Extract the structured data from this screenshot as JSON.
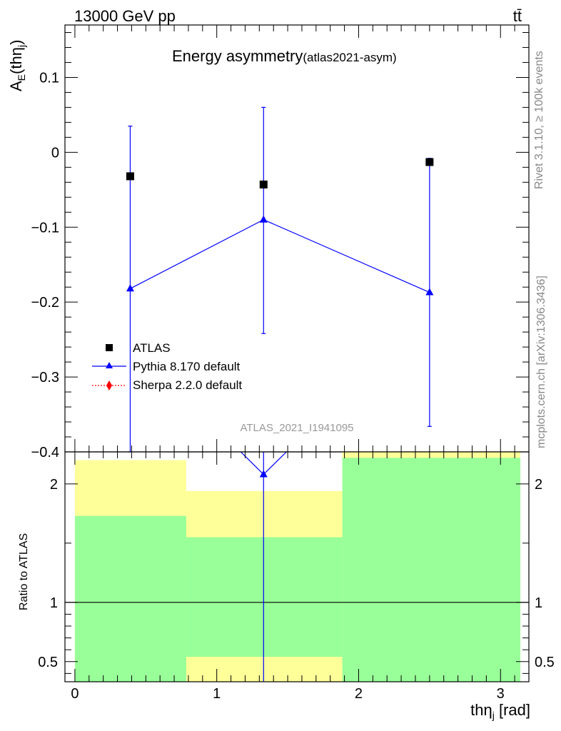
{
  "header": {
    "energy": "13000 GeV pp",
    "process": "tt̄"
  },
  "side_labels": {
    "rivet": "Rivet 3.1.10, ≥ 100k events",
    "mcplots": "mcplots.cern.ch [arXiv:1306.3436]"
  },
  "watermark": "ATLAS_2021_I1941095",
  "colors": {
    "atlas": "#000000",
    "pythia": "#0000ff",
    "sherpa": "#ff0000",
    "band_inner": "#99ff99",
    "band_outer": "#ffff99"
  },
  "chart_data": [
    {
      "type": "scatter",
      "panel": "main",
      "title": "Energy asymmetry",
      "title_suffix": "(atlas2021-asym)",
      "ylabel_main": "A",
      "ylabel_sub": "E",
      "ylabel_tail": "(thη",
      "ylabel_tail_sub": "j",
      "ylabel_close": ")",
      "ylim": [
        -0.4,
        0.17
      ],
      "yticks": [
        0.1,
        0,
        -0.1,
        -0.2,
        -0.3,
        -0.4
      ],
      "ytick_labels": [
        "0.1",
        "0",
        "−0.1",
        "−0.2",
        "−0.3",
        "−0.4"
      ],
      "series": [
        {
          "name": "ATLAS",
          "marker": "square",
          "points": [
            {
              "x": 0.39,
              "y": -0.032
            },
            {
              "x": 1.33,
              "y": -0.043
            },
            {
              "x": 2.5,
              "y": -0.013
            }
          ]
        },
        {
          "name": "Pythia 8.170 default",
          "marker": "triangle",
          "points": [
            {
              "x": 0.39,
              "y": -0.182,
              "ylo": -0.4,
              "yhi": 0.035
            },
            {
              "x": 1.33,
              "y": -0.09,
              "ylo": -0.242,
              "yhi": 0.06
            },
            {
              "x": 2.5,
              "y": -0.187,
              "ylo": -0.366,
              "yhi": -0.008
            }
          ]
        },
        {
          "name": "Sherpa 2.2.0 default",
          "marker": "diamond",
          "points": []
        }
      ],
      "legend_position": "bottom-left"
    },
    {
      "type": "area",
      "panel": "ratio",
      "ylabel": "Ratio to ATLAS",
      "xlabel_main": "thη",
      "xlabel_sub": "j",
      "xlabel_unit": " [rad]",
      "xlim": [
        -0.07,
        3.2
      ],
      "ylim": [
        0.33,
        2.27
      ],
      "xticks": [
        0,
        1,
        2,
        3
      ],
      "xtick_labels": [
        "0",
        "1",
        "2",
        "3"
      ],
      "yticks": [
        0.5,
        1,
        2
      ],
      "ytick_labels": [
        "0.5",
        "1",
        "2"
      ],
      "bins": [
        {
          "xlo": 0.0,
          "xhi": 0.785,
          "inner_lo": 0.33,
          "inner_hi": 1.73,
          "outer_lo": 0.33,
          "outer_hi": 2.2
        },
        {
          "xlo": 0.785,
          "xhi": 1.885,
          "inner_lo": 0.54,
          "inner_hi": 1.55,
          "outer_lo": 0.33,
          "outer_hi": 1.94
        },
        {
          "xlo": 1.885,
          "xhi": 3.14,
          "inner_lo": 0.33,
          "inner_hi": 2.22,
          "outer_lo": 0.33,
          "outer_hi": 2.27
        }
      ],
      "pythia_ratio": [
        {
          "x": 1.33,
          "y": 2.08
        }
      ],
      "reference": 1
    }
  ]
}
